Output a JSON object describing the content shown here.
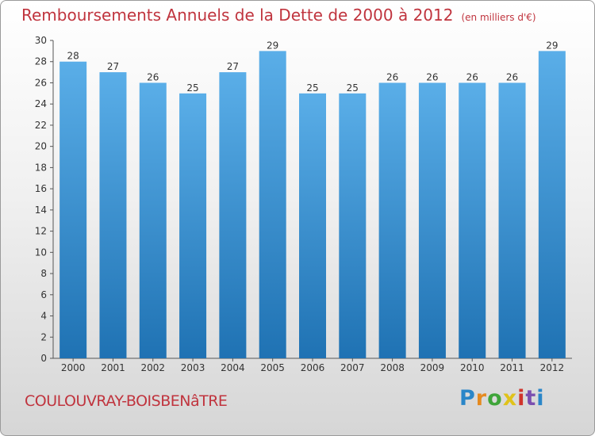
{
  "title": "Remboursements Annuels de la Dette de 2000 à 2012",
  "unit": "(en milliers d'€)",
  "commune": "COULOUVRAY-BOISBENâTRE",
  "logo_letters": [
    "P",
    "r",
    "o",
    "x",
    "i",
    "t",
    "i"
  ],
  "colors": {
    "title": "#c0343e",
    "bar_top": "#5aaee8",
    "bar_bottom": "#1f72b3"
  },
  "chart_data": {
    "type": "bar",
    "categories": [
      "2000",
      "2001",
      "2002",
      "2003",
      "2004",
      "2005",
      "2006",
      "2007",
      "2008",
      "2009",
      "2010",
      "2011",
      "2012"
    ],
    "values": [
      28,
      27,
      26,
      25,
      27,
      29,
      25,
      25,
      26,
      26,
      26,
      26,
      29
    ],
    "ylim": [
      0,
      30
    ],
    "yticks": [
      0,
      2,
      4,
      6,
      8,
      10,
      12,
      14,
      16,
      18,
      20,
      22,
      24,
      26,
      28,
      30
    ],
    "grid": false,
    "legend": "none"
  }
}
